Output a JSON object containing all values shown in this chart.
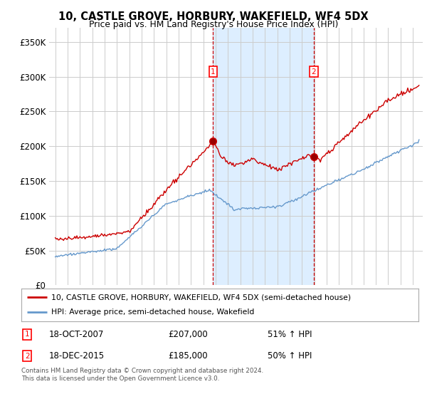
{
  "title": "10, CASTLE GROVE, HORBURY, WAKEFIELD, WF4 5DX",
  "subtitle": "Price paid vs. HM Land Registry's House Price Index (HPI)",
  "background_color": "#ffffff",
  "plot_bg_color": "#ffffff",
  "grid_color": "#cccccc",
  "red_line_color": "#cc0000",
  "blue_line_color": "#6699cc",
  "shaded_region_color": "#ddeeff",
  "ylim": [
    0,
    370000
  ],
  "yticks": [
    0,
    50000,
    100000,
    150000,
    200000,
    250000,
    300000,
    350000
  ],
  "ytick_labels": [
    "£0",
    "£50K",
    "£100K",
    "£150K",
    "£200K",
    "£250K",
    "£300K",
    "£350K"
  ],
  "sale1_date_num": 2007.8,
  "sale1_price": 207000,
  "sale1_date_str": "18-OCT-2007",
  "sale1_hpi_pct": "51% ↑ HPI",
  "sale2_date_num": 2015.96,
  "sale2_price": 185000,
  "sale2_date_str": "18-DEC-2015",
  "sale2_hpi_pct": "50% ↑ HPI",
  "legend_line1": "10, CASTLE GROVE, HORBURY, WAKEFIELD, WF4 5DX (semi-detached house)",
  "legend_line2": "HPI: Average price, semi-detached house, Wakefield",
  "footnote": "Contains HM Land Registry data © Crown copyright and database right 2024.\nThis data is licensed under the Open Government Licence v3.0.",
  "xlim_start": 1994.5,
  "xlim_end": 2024.8
}
